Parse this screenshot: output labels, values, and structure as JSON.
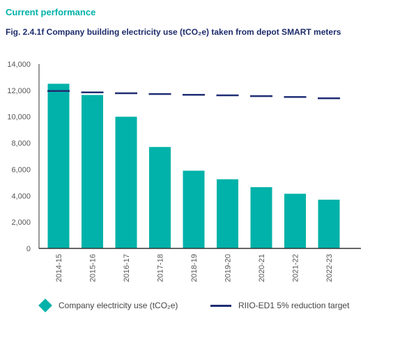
{
  "heading": "Current performance",
  "figure_title": "Fig. 2.4.1f Company building electricity use (tCO₂e) taken from depot SMART meters",
  "colors": {
    "bar": "#00b2a9",
    "target": "#1f2d73",
    "axis": "#333333"
  },
  "chart_data": {
    "type": "bar",
    "categories": [
      "2014-15",
      "2015-16",
      "2016-17",
      "2017-18",
      "2018-19",
      "2019-20",
      "2020-21",
      "2021-22",
      "2022-23"
    ],
    "series": [
      {
        "name": "Company electricity use (tCO₂e)",
        "type": "bar",
        "values": [
          12500,
          11650,
          10000,
          7700,
          5900,
          5250,
          4650,
          4150,
          3700
        ]
      },
      {
        "name": "RIIO-ED1 5% reduction target",
        "type": "line",
        "style": "dashed",
        "values": [
          11950,
          11850,
          11780,
          11720,
          11660,
          11620,
          11560,
          11500,
          11400
        ]
      }
    ],
    "yticks": [
      "0",
      "2,000",
      "4,000",
      "6,000",
      "8,000",
      "10,000",
      "12,000",
      "14,000"
    ],
    "ylim": [
      0,
      14000
    ],
    "legend_position": "bottom",
    "grid": false
  }
}
